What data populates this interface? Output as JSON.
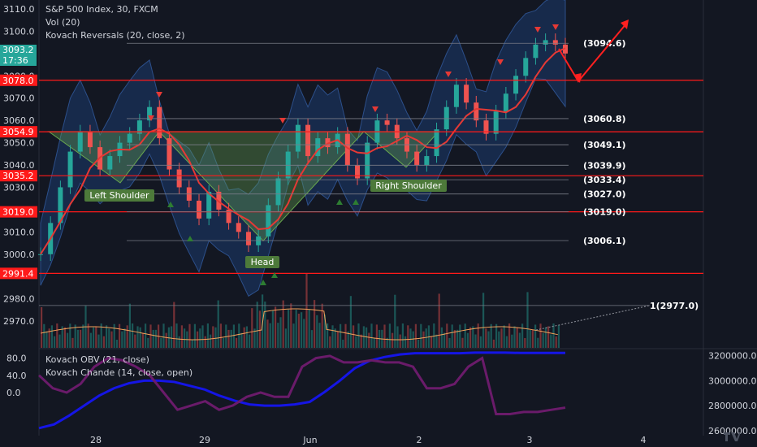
{
  "colors": {
    "background": "#131722",
    "up": "#26a69a",
    "down": "#ef5350",
    "support_line": "#ff1a1a",
    "pattern_fill": "#6aa84f",
    "band_fill": "#1c3a6e",
    "obv": "#1515e6",
    "chande": "#6a1b6a",
    "vol_ma": "#f4a259",
    "label_bg": "#4d7a3a",
    "arrow": "#ff2020"
  },
  "legend": {
    "title": "S&P 500 Index, 30, FXCM",
    "volume": "Vol (20)",
    "reversals": "Kovach Reversals (20, close, 2)",
    "obv": "Kovach OBV (21, close)",
    "chande": "Kovach Chande (14, close, open)"
  },
  "badges": {
    "current_price": "3093.2",
    "countdown": "17:36"
  },
  "chart_data": {
    "type": "candlestick",
    "title": "S&P 500 Index, 30, FXCM",
    "x_tick_labels": [
      "28",
      "29",
      "Jun",
      "2",
      "3",
      "4"
    ],
    "y_main": {
      "range": [
        2958,
        3114
      ],
      "tick_labels": [
        "3110.0",
        "3100.0",
        "3090.0",
        "3080.0",
        "3070.0",
        "3060.0",
        "3050.0",
        "3040.0",
        "3030.0",
        "3020.0",
        "3010.0",
        "3000.0",
        "2980.0",
        "2970.0"
      ]
    },
    "y_osc": {
      "range": [
        -100,
        100
      ],
      "tick_labels": [
        "80.0",
        "40.0",
        "0.0"
      ]
    },
    "y_obv": {
      "tick_labels": [
        "3200000.0",
        "3000000.0",
        "2800000.0",
        "2600000.0"
      ]
    },
    "horizontal_levels": [
      {
        "value": 3078.0,
        "label": "3078.0"
      },
      {
        "value": 3054.9,
        "label": "3054.9"
      },
      {
        "value": 3035.2,
        "label": "3035.2"
      },
      {
        "value": 3019.0,
        "label": "3019.0"
      },
      {
        "value": 2991.4,
        "label": "2991.4"
      }
    ],
    "fib_levels": [
      {
        "value": 3094.6,
        "label": "(3094.6)"
      },
      {
        "value": 3060.8,
        "label": "(3060.8)"
      },
      {
        "value": 3049.1,
        "label": "(3049.1)"
      },
      {
        "value": 3039.9,
        "label": "(3039.9)"
      },
      {
        "value": 3033.4,
        "label": "(3033.4)"
      },
      {
        "value": 3027.0,
        "label": "(3027.0)"
      },
      {
        "value": 3019.0,
        "label": "(3019.0)"
      },
      {
        "value": 3006.1,
        "label": "(3006.1)"
      },
      {
        "value": 2977.0,
        "label": "1(2977.0)"
      }
    ],
    "pattern_labels": [
      "Left Shoulder",
      "Head",
      "Right Shoulder"
    ],
    "series": [
      {
        "name": "Kovach OBV (21, close)"
      },
      {
        "name": "Kovach Chande (14, close, open)"
      }
    ],
    "price_path": [
      3000,
      3014,
      3030,
      3046,
      3055,
      3048,
      3038,
      3044,
      3050,
      3054,
      3060,
      3066,
      3052,
      3038,
      3030,
      3024,
      3016,
      3028,
      3020,
      3014,
      3010,
      3004,
      3008,
      3022,
      3034,
      3046,
      3058,
      3044,
      3052,
      3048,
      3054,
      3040,
      3034,
      3050,
      3060,
      3058,
      3052,
      3046,
      3040,
      3044,
      3056,
      3066,
      3076,
      3068,
      3060,
      3054,
      3064,
      3072,
      3080,
      3088,
      3094,
      3096,
      3094,
      3090
    ],
    "obv_path": [
      2620000,
      2650000,
      2720000,
      2800000,
      2880000,
      2940000,
      2980000,
      3000000,
      3000000,
      2990000,
      2960000,
      2930000,
      2880000,
      2840000,
      2810000,
      2800000,
      2800000,
      2810000,
      2830000,
      2910000,
      3000000,
      3100000,
      3160000,
      3190000,
      3210000,
      3220000,
      3220000,
      3220000,
      3220000,
      3225000,
      3225000,
      3225000,
      3222000,
      3222000,
      3222000,
      3222000
    ],
    "chande_path": [
      40,
      10,
      0,
      20,
      60,
      80,
      75,
      60,
      40,
      0,
      -40,
      -30,
      -20,
      -40,
      -30,
      -10,
      0,
      -10,
      -10,
      60,
      80,
      85,
      70,
      70,
      75,
      70,
      70,
      60,
      10,
      10,
      20,
      60,
      80,
      -50,
      -50,
      -45,
      -45,
      -40,
      -35
    ]
  }
}
